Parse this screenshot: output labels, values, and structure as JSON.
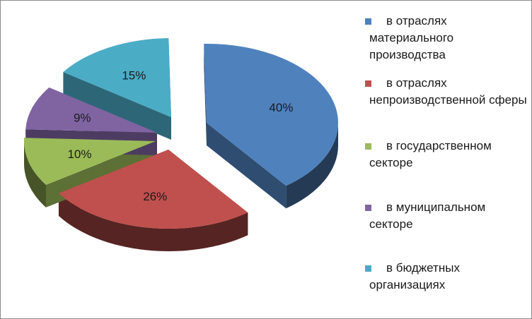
{
  "chart_data": {
    "type": "pie",
    "style": "3d-exploded",
    "title": "",
    "legend_position": "right",
    "slices": [
      {
        "name": "в отраслях материального производства",
        "value": 40,
        "label": "40%",
        "color": "#4f81bd"
      },
      {
        "name": "в отраслях непроизводственной сферы",
        "value": 26,
        "label": "26%",
        "color": "#c0504d"
      },
      {
        "name": "в государственном секторе",
        "value": 10,
        "label": "10%",
        "color": "#9bbb59"
      },
      {
        "name": "в муниципальном секторе",
        "value": 9,
        "label": "9%",
        "color": "#8064a2"
      },
      {
        "name": "в бюджетных организациях",
        "value": 15,
        "label": "15%",
        "color": "#4bacc6"
      }
    ]
  }
}
